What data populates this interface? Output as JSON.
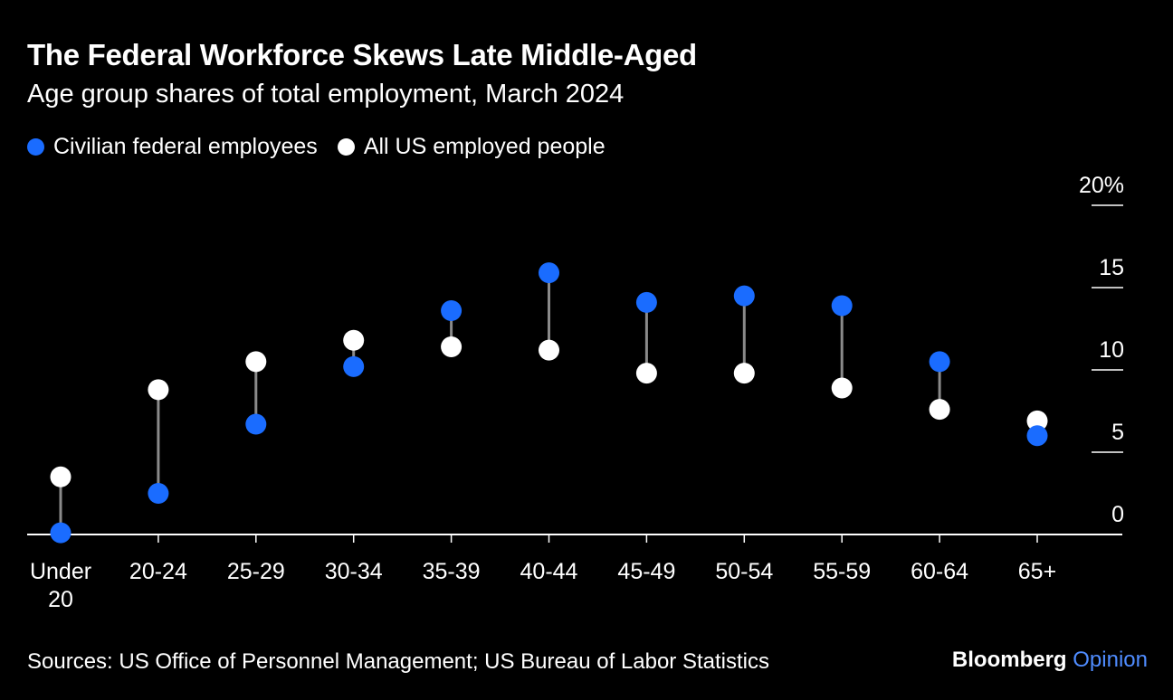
{
  "colors": {
    "background": "#000000",
    "federal": "#1a6cff",
    "all_us": "#ffffff",
    "connector": "#8a8a8a",
    "brand_accent": "#4f8cff"
  },
  "header": {
    "title": "The Federal Workforce Skews Late Middle-Aged",
    "subtitle": "Age group shares of total employment, March 2024"
  },
  "legend": {
    "items": [
      {
        "label": "Civilian federal employees",
        "icon": "blue-dot-icon"
      },
      {
        "label": "All US employed people",
        "icon": "white-dot-icon"
      }
    ]
  },
  "footer": {
    "source": "Sources: US Office of Personnel Management; US Bureau of Labor Statistics",
    "brand_main": "Bloomberg",
    "brand_accent": "Opinion"
  },
  "chart_data": {
    "type": "scatter",
    "subtype": "dumbbell",
    "title": "The Federal Workforce Skews Late Middle-Aged",
    "subtitle": "Age group shares of total employment, March 2024",
    "xlabel": "",
    "ylabel": "",
    "ylim": [
      0,
      20
    ],
    "yticks": [
      0,
      5,
      10,
      15,
      20
    ],
    "ytick_labels": [
      "0",
      "5",
      "10",
      "15",
      "20%"
    ],
    "y_axis_side": "right",
    "grid": false,
    "legend_position": "top-left",
    "categories": [
      "Under 20",
      "20-24",
      "25-29",
      "30-34",
      "35-39",
      "40-44",
      "45-49",
      "50-54",
      "55-59",
      "60-64",
      "65+"
    ],
    "series": [
      {
        "name": "Civilian federal employees",
        "values": [
          0.1,
          2.5,
          6.7,
          10.2,
          13.6,
          15.9,
          14.1,
          14.5,
          13.9,
          10.5,
          6.0
        ]
      },
      {
        "name": "All US employed people",
        "values": [
          3.5,
          8.8,
          10.5,
          11.8,
          11.4,
          11.2,
          9.8,
          9.8,
          8.9,
          7.6,
          6.9
        ]
      }
    ]
  }
}
